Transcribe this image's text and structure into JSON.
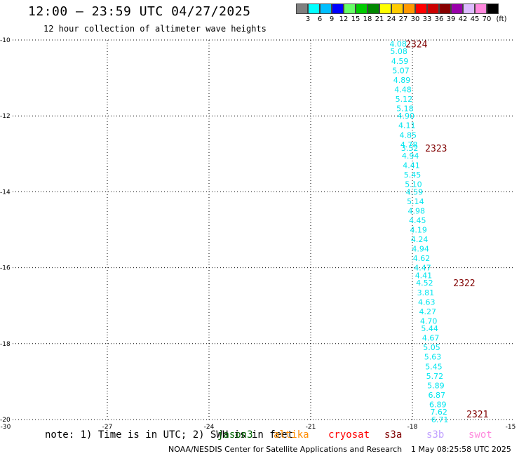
{
  "header": {
    "title": "12:00 – 23:59 UTC 04/27/2025",
    "subtitle": "12 hour collection of altimeter wave heights"
  },
  "color_scale": {
    "swatches": [
      "#808080",
      "#00ffff",
      "#00bfff",
      "#0000ff",
      "#66ff66",
      "#00cc00",
      "#008800",
      "#ffff00",
      "#ffcc00",
      "#ff9900",
      "#ff0000",
      "#cc0000",
      "#880000",
      "#9900aa",
      "#ddbbff",
      "#ff88dd",
      "#000000"
    ],
    "labels": [
      "3",
      "6",
      "9",
      "12",
      "15",
      "18",
      "21",
      "24",
      "27",
      "30",
      "33",
      "36",
      "39",
      "42",
      "45",
      "70",
      "(ft)"
    ]
  },
  "axes": {
    "x_ticks": [
      "-30",
      "-27",
      "-24",
      "-21",
      "-18",
      "-15"
    ],
    "y_ticks": [
      "-10",
      "-12",
      "-14",
      "-16",
      "-18",
      "-20"
    ],
    "xlim": [
      -30,
      -15
    ],
    "ylim": [
      -20,
      -10
    ],
    "grid": true
  },
  "observations": [
    {
      "lon": -18.42,
      "lat": -10.1,
      "value": "4.08"
    },
    {
      "lon": -18.4,
      "lat": -10.3,
      "value": "5.08"
    },
    {
      "lon": -18.37,
      "lat": -10.55,
      "value": "4.59"
    },
    {
      "lon": -18.34,
      "lat": -10.8,
      "value": "5.07"
    },
    {
      "lon": -18.31,
      "lat": -11.05,
      "value": "4.89"
    },
    {
      "lon": -18.28,
      "lat": -11.3,
      "value": "4.48"
    },
    {
      "lon": -18.25,
      "lat": -11.55,
      "value": "5.12"
    },
    {
      "lon": -18.22,
      "lat": -11.8,
      "value": "5.18"
    },
    {
      "lon": -18.19,
      "lat": -12.0,
      "value": "4.90"
    },
    {
      "lon": -18.16,
      "lat": -12.25,
      "value": "4.11"
    },
    {
      "lon": -18.13,
      "lat": -12.5,
      "value": "4.85"
    },
    {
      "lon": -18.1,
      "lat": -12.75,
      "value": "4.78"
    },
    {
      "lon": -18.08,
      "lat": -12.85,
      "value": "3.52"
    },
    {
      "lon": -18.06,
      "lat": -13.05,
      "value": "4.94"
    },
    {
      "lon": -18.03,
      "lat": -13.3,
      "value": "4.41"
    },
    {
      "lon": -18.0,
      "lat": -13.55,
      "value": "5.45"
    },
    {
      "lon": -17.97,
      "lat": -13.8,
      "value": "5.10"
    },
    {
      "lon": -17.94,
      "lat": -14.0,
      "value": "4.59"
    },
    {
      "lon": -17.91,
      "lat": -14.25,
      "value": "5.14"
    },
    {
      "lon": -17.88,
      "lat": -14.5,
      "value": "4.98"
    },
    {
      "lon": -17.85,
      "lat": -14.75,
      "value": "4.45"
    },
    {
      "lon": -17.82,
      "lat": -15.0,
      "value": "4.19"
    },
    {
      "lon": -17.79,
      "lat": -15.25,
      "value": "4.24"
    },
    {
      "lon": -17.76,
      "lat": -15.5,
      "value": "4.94"
    },
    {
      "lon": -17.73,
      "lat": -15.75,
      "value": "4.62"
    },
    {
      "lon": -17.7,
      "lat": -16.0,
      "value": "4.47"
    },
    {
      "lon": -17.67,
      "lat": -16.2,
      "value": "4.41"
    },
    {
      "lon": -17.64,
      "lat": -16.4,
      "value": "4.52"
    },
    {
      "lon": -17.61,
      "lat": -16.65,
      "value": "3.81"
    },
    {
      "lon": -17.58,
      "lat": -16.9,
      "value": "4.63"
    },
    {
      "lon": -17.55,
      "lat": -17.15,
      "value": "4.27"
    },
    {
      "lon": -17.52,
      "lat": -17.4,
      "value": "4.70"
    },
    {
      "lon": -17.49,
      "lat": -17.6,
      "value": "5.44"
    },
    {
      "lon": -17.46,
      "lat": -17.85,
      "value": "4.67"
    },
    {
      "lon": -17.43,
      "lat": -18.1,
      "value": "5.05"
    },
    {
      "lon": -17.4,
      "lat": -18.35,
      "value": "5.63"
    },
    {
      "lon": -17.37,
      "lat": -18.6,
      "value": "5.45"
    },
    {
      "lon": -17.34,
      "lat": -18.85,
      "value": "5.72"
    },
    {
      "lon": -17.31,
      "lat": -19.1,
      "value": "5.89"
    },
    {
      "lon": -17.28,
      "lat": -19.35,
      "value": "6.87"
    },
    {
      "lon": -17.25,
      "lat": -19.6,
      "value": "6.89"
    },
    {
      "lon": -17.22,
      "lat": -19.8,
      "value": "7.62"
    },
    {
      "lon": -17.19,
      "lat": -20.0,
      "value": "6.71"
    }
  ],
  "pass_labels": [
    {
      "lon": -17.88,
      "lat": -10.1,
      "label": "2324"
    },
    {
      "lon": -17.3,
      "lat": -12.85,
      "label": "2323"
    },
    {
      "lon": -16.47,
      "lat": -16.4,
      "label": "2322"
    },
    {
      "lon": -16.08,
      "lat": -19.85,
      "label": "2321"
    }
  ],
  "footer": {
    "note": "note: 1) Time is in UTC; 2) SWH is in feet",
    "satellites": [
      {
        "name": "jason3",
        "color": "#006400"
      },
      {
        "name": "altika",
        "color": "#ff8c00"
      },
      {
        "name": "cryosat",
        "color": "#ff0000"
      },
      {
        "name": "s3a",
        "color": "#800000"
      },
      {
        "name": "s3b",
        "color": "#c0a0ff"
      },
      {
        "name": "swot",
        "color": "#ff88dd"
      }
    ],
    "credit": "NOAA/NESDIS Center for Satellite Applications and Research",
    "timestamp": "1 May 08:25:58 UTC 2025"
  }
}
